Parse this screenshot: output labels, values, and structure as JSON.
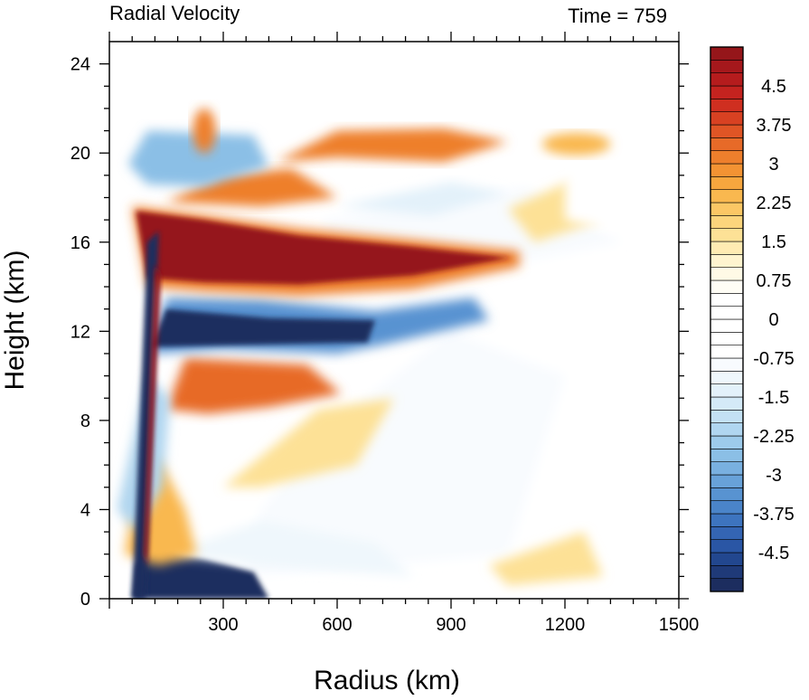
{
  "chart_data": {
    "type": "heatmap",
    "title": "Radial Velocity",
    "subtitle": "Time = 759",
    "xlabel": "Radius (km)",
    "ylabel": "Height (km)",
    "xlim": [
      0,
      1500
    ],
    "ylim": [
      0,
      25
    ],
    "x_ticks": [
      300,
      600,
      900,
      1200,
      1500
    ],
    "y_ticks": [
      0,
      4,
      8,
      12,
      16,
      20,
      24
    ],
    "colorbar": {
      "levels": [
        -5.25,
        -5.0,
        -4.75,
        -4.5,
        -4.25,
        -4.0,
        -3.75,
        -3.5,
        -3.25,
        -3.0,
        -2.75,
        -2.5,
        -2.25,
        -2.0,
        -1.75,
        -1.5,
        -1.25,
        -1.0,
        -0.75,
        -0.5,
        -0.25,
        0.0,
        0.25,
        0.5,
        0.75,
        1.0,
        1.25,
        1.5,
        1.75,
        2.0,
        2.25,
        2.5,
        2.75,
        3.0,
        3.25,
        3.5,
        3.75,
        4.0,
        4.25,
        4.5,
        4.75,
        5.0,
        5.25
      ],
      "labels": [
        "4.5",
        "3.75",
        "3",
        "2.25",
        "1.5",
        "0.75",
        "0",
        "-0.75",
        "-1.5",
        "-2.25",
        "-3",
        "-3.75",
        "-4.5"
      ],
      "label_values": [
        4.5,
        3.75,
        3.0,
        2.25,
        1.5,
        0.75,
        0.0,
        -0.75,
        -1.5,
        -2.25,
        -3.0,
        -3.75,
        -4.5
      ],
      "colors": [
        "#1c2d5f",
        "#1f3a78",
        "#22478f",
        "#2a56a5",
        "#3465b3",
        "#3d74bf",
        "#4a84c9",
        "#5893d1",
        "#68a2d9",
        "#79b0e0",
        "#8bbfe6",
        "#9dcbeb",
        "#b0d6f0",
        "#c3e1f4",
        "#d4eaf7",
        "#e3f1fa",
        "#eff7fc",
        "#f8fbfe",
        "#ffffff",
        "#ffffff",
        "#ffffff",
        "#ffffff",
        "#ffffff",
        "#fffdf5",
        "#fffae6",
        "#fff4cf",
        "#ffebb3",
        "#fde196",
        "#fcd57c",
        "#fbc765",
        "#f9b84f",
        "#f7a63e",
        "#f39333",
        "#ee7f2c",
        "#e76a28",
        "#e05525",
        "#d84122",
        "#cf2f20",
        "#c4231f",
        "#b51c1d",
        "#a5181c",
        "#95161a"
      ]
    },
    "features": [
      {
        "name": "upper outflow jet",
        "sign": "positive",
        "x_range": [
          100,
          1060
        ],
        "height_km": 15.2,
        "peak_value": 5.25
      },
      {
        "name": "inflow layer below outflow",
        "sign": "negative",
        "x_range": [
          100,
          700
        ],
        "height_km": 12.0,
        "peak_value": -5.25
      },
      {
        "name": "boundary-layer inflow",
        "sign": "negative",
        "x_range": [
          60,
          400
        ],
        "height_km": 0.3,
        "peak_value": -5.25
      },
      {
        "name": "mid-level outflow",
        "sign": "positive",
        "x_range": [
          150,
          600
        ],
        "height_km": 9.8,
        "peak_value": 3.5
      },
      {
        "name": "upper-level outflow band",
        "sign": "positive",
        "x_range": [
          500,
          1300
        ],
        "height_km": 20.4,
        "peak_value": 3.0
      }
    ]
  }
}
